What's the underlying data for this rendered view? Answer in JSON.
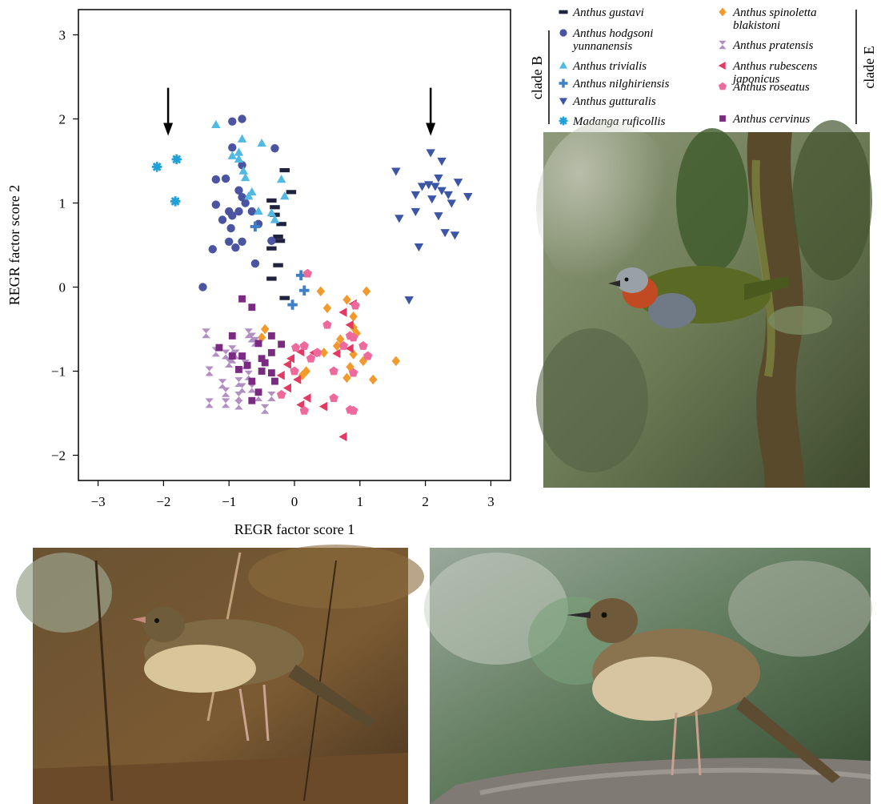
{
  "chart_data": {
    "type": "scatter",
    "xlabel": "REGR factor score 1",
    "ylabel": "REGR factor score 2",
    "xlim": [
      -3.3,
      3.3
    ],
    "ylim": [
      -2.3,
      3.3
    ],
    "xticks": [
      -3,
      -2,
      -1,
      0,
      1,
      2,
      3
    ],
    "yticks": [
      -2,
      -1,
      0,
      1,
      2,
      3
    ],
    "xtick_labels": [
      "−3",
      "−2",
      "−1",
      "0",
      "1",
      "2",
      "3"
    ],
    "ytick_labels": [
      "−2",
      "−1",
      "0",
      "1",
      "2",
      "3"
    ],
    "grid": false,
    "annotations": [
      {
        "type": "arrow-down",
        "x": -1.93,
        "y_top": 2.37,
        "y_bottom": 1.8
      },
      {
        "type": "arrow-down",
        "x": 2.08,
        "y_top": 2.37,
        "y_bottom": 1.8
      }
    ],
    "series": [
      {
        "name": "Anthus gustavi",
        "marker": "dash",
        "color": "#1f2340",
        "points": [
          [
            -0.15,
            1.39
          ],
          [
            -0.05,
            1.13
          ],
          [
            -0.35,
            1.03
          ],
          [
            -0.2,
            0.75
          ],
          [
            -0.25,
            0.6
          ],
          [
            -0.3,
            0.86
          ],
          [
            -0.35,
            0.46
          ],
          [
            -0.22,
            0.55
          ],
          [
            -0.25,
            0.26
          ],
          [
            -0.35,
            0.1
          ],
          [
            -0.15,
            -0.13
          ],
          [
            -0.3,
            0.95
          ]
        ]
      },
      {
        "name": "Anthus hodgsoni yunnanensis",
        "marker": "circle",
        "color": "#4b54a0",
        "points": [
          [
            -0.8,
            2.0
          ],
          [
            -0.95,
            1.97
          ],
          [
            -0.3,
            1.65
          ],
          [
            -0.95,
            1.66
          ],
          [
            -0.8,
            1.45
          ],
          [
            -1.05,
            1.29
          ],
          [
            -0.85,
            1.15
          ],
          [
            -0.8,
            1.07
          ],
          [
            -1.2,
            0.98
          ],
          [
            -1.0,
            0.9
          ],
          [
            -0.95,
            0.85
          ],
          [
            -0.85,
            0.9
          ],
          [
            -1.1,
            0.8
          ],
          [
            -0.97,
            0.7
          ],
          [
            -1.0,
            0.54
          ],
          [
            -0.8,
            0.54
          ],
          [
            -0.9,
            0.47
          ],
          [
            -0.6,
            0.28
          ],
          [
            -1.25,
            0.45
          ],
          [
            -1.4,
            0.0
          ],
          [
            -0.75,
            1.0
          ],
          [
            -0.35,
            0.55
          ],
          [
            -1.2,
            1.28
          ],
          [
            -0.65,
            0.9
          ],
          [
            -0.55,
            0.75
          ]
        ]
      },
      {
        "name": "Anthus trivialis",
        "marker": "triangle-up",
        "color": "#52b9e3",
        "points": [
          [
            -1.2,
            1.93
          ],
          [
            -0.8,
            1.76
          ],
          [
            -0.5,
            1.71
          ],
          [
            -0.85,
            1.6
          ],
          [
            -0.95,
            1.56
          ],
          [
            -0.85,
            1.52
          ],
          [
            -0.78,
            1.38
          ],
          [
            -0.75,
            1.3
          ],
          [
            -0.65,
            1.13
          ],
          [
            -0.55,
            0.9
          ],
          [
            -0.35,
            0.88
          ],
          [
            -0.3,
            0.8
          ],
          [
            -0.15,
            1.08
          ],
          [
            -0.2,
            1.28
          ],
          [
            -0.7,
            1.08
          ]
        ]
      },
      {
        "name": "Anthus nilghiriensis",
        "marker": "plus",
        "color": "#3f7fc6",
        "points": [
          [
            -0.6,
            0.72
          ],
          [
            0.1,
            0.14
          ],
          [
            0.15,
            -0.04
          ],
          [
            -0.03,
            -0.21
          ]
        ]
      },
      {
        "name": "Anthus gutturalis",
        "marker": "triangle-down",
        "color": "#3d55a6",
        "points": [
          [
            2.08,
            1.6
          ],
          [
            2.25,
            1.5
          ],
          [
            1.55,
            1.38
          ],
          [
            2.2,
            1.3
          ],
          [
            2.5,
            1.25
          ],
          [
            2.05,
            1.22
          ],
          [
            2.15,
            1.2
          ],
          [
            1.95,
            1.2
          ],
          [
            2.25,
            1.15
          ],
          [
            1.85,
            1.1
          ],
          [
            2.35,
            1.1
          ],
          [
            2.65,
            1.08
          ],
          [
            2.1,
            1.05
          ],
          [
            2.4,
            1.0
          ],
          [
            1.85,
            0.9
          ],
          [
            1.6,
            0.82
          ],
          [
            2.2,
            0.85
          ],
          [
            2.3,
            0.65
          ],
          [
            2.45,
            0.62
          ],
          [
            1.9,
            0.48
          ],
          [
            1.75,
            -0.15
          ]
        ]
      },
      {
        "name": "Madanga ruficollis",
        "marker": "asterisk",
        "color": "#1fa0d8",
        "points": [
          [
            -2.1,
            1.43
          ],
          [
            -1.8,
            1.52
          ],
          [
            -1.82,
            1.02
          ]
        ]
      },
      {
        "name": "Anthus spinoletta blakistoni",
        "marker": "diamond",
        "color": "#f39a2c",
        "points": [
          [
            0.4,
            -0.05
          ],
          [
            0.5,
            -0.25
          ],
          [
            0.8,
            -0.15
          ],
          [
            0.9,
            -0.35
          ],
          [
            1.1,
            -0.05
          ],
          [
            0.7,
            -0.62
          ],
          [
            0.95,
            -0.55
          ],
          [
            0.65,
            -0.7
          ],
          [
            0.45,
            -0.78
          ],
          [
            0.9,
            -0.8
          ],
          [
            1.05,
            -0.88
          ],
          [
            0.85,
            -0.95
          ],
          [
            1.55,
            -0.88
          ],
          [
            1.2,
            -1.1
          ],
          [
            0.12,
            -1.05
          ],
          [
            -0.45,
            -0.5
          ],
          [
            -0.5,
            -0.6
          ],
          [
            0.8,
            -1.08
          ],
          [
            0.9,
            -0.48
          ],
          [
            0.18,
            -1.0
          ]
        ]
      },
      {
        "name": "Anthus pratensis",
        "marker": "hourglass",
        "color": "#b28fc3",
        "points": [
          [
            -1.35,
            -0.55
          ],
          [
            -1.2,
            -0.77
          ],
          [
            -1.05,
            -0.8
          ],
          [
            -0.9,
            -0.8
          ],
          [
            -1.0,
            -0.9
          ],
          [
            -0.95,
            -0.85
          ],
          [
            -0.75,
            -0.92
          ],
          [
            -0.7,
            -0.55
          ],
          [
            -0.6,
            -0.65
          ],
          [
            -1.3,
            -1.0
          ],
          [
            -1.1,
            -1.15
          ],
          [
            -0.85,
            -1.13
          ],
          [
            -0.7,
            -1.05
          ],
          [
            -1.05,
            -1.25
          ],
          [
            -0.85,
            -1.3
          ],
          [
            -0.65,
            -1.2
          ],
          [
            -0.55,
            -1.3
          ],
          [
            -0.45,
            -1.45
          ],
          [
            -1.3,
            -1.38
          ],
          [
            -1.05,
            -1.38
          ],
          [
            -0.85,
            -1.4
          ],
          [
            -0.35,
            -1.3
          ],
          [
            -0.65,
            -0.6
          ],
          [
            -0.8,
            -1.2
          ],
          [
            -0.95,
            -0.75
          ]
        ]
      },
      {
        "name": "Anthus rubescens japonicus",
        "marker": "triangle-left",
        "color": "#e33a63",
        "points": [
          [
            0.9,
            -0.2
          ],
          [
            0.75,
            -0.3
          ],
          [
            0.85,
            -0.73
          ],
          [
            0.65,
            -0.79
          ],
          [
            0.1,
            -0.77
          ],
          [
            -0.05,
            -0.85
          ],
          [
            -0.1,
            -0.92
          ],
          [
            -0.2,
            -1.05
          ],
          [
            0.05,
            -1.1
          ],
          [
            -0.1,
            -1.2
          ],
          [
            0.2,
            -1.32
          ],
          [
            0.1,
            -1.4
          ],
          [
            0.45,
            -1.42
          ],
          [
            0.75,
            -1.78
          ],
          [
            0.85,
            -0.45
          ],
          [
            0.3,
            -0.78
          ]
        ]
      },
      {
        "name": "Anthus roseatus",
        "marker": "pentagon",
        "color": "#ef6a9c",
        "points": [
          [
            0.2,
            0.16
          ],
          [
            0.93,
            -0.22
          ],
          [
            0.5,
            -0.45
          ],
          [
            0.9,
            -0.6
          ],
          [
            1.05,
            -0.7
          ],
          [
            0.35,
            -0.78
          ],
          [
            0.15,
            -0.7
          ],
          [
            0.25,
            -0.85
          ],
          [
            0.85,
            -0.58
          ],
          [
            1.12,
            -0.82
          ],
          [
            0.9,
            -1.02
          ],
          [
            0.6,
            -1.0
          ],
          [
            0.0,
            -1.0
          ],
          [
            -0.2,
            -1.28
          ],
          [
            0.15,
            -1.47
          ],
          [
            0.6,
            -1.32
          ],
          [
            0.85,
            -1.46
          ],
          [
            0.9,
            -1.47
          ],
          [
            0.75,
            -0.7
          ],
          [
            0.02,
            -0.72
          ]
        ]
      },
      {
        "name": "Anthus cervinus",
        "marker": "square",
        "color": "#7b2a82",
        "points": [
          [
            -0.8,
            -0.14
          ],
          [
            -0.65,
            -0.24
          ],
          [
            -1.15,
            -0.72
          ],
          [
            -0.95,
            -0.58
          ],
          [
            -0.8,
            -0.82
          ],
          [
            -0.5,
            -0.85
          ],
          [
            -0.35,
            -0.78
          ],
          [
            -0.2,
            -0.68
          ],
          [
            -0.55,
            -0.67
          ],
          [
            -0.85,
            -0.98
          ],
          [
            -0.72,
            -0.93
          ],
          [
            -0.5,
            -1.0
          ],
          [
            -0.35,
            -1.02
          ],
          [
            -0.65,
            -1.12
          ],
          [
            -0.3,
            -1.12
          ],
          [
            -0.55,
            -1.25
          ],
          [
            -0.65,
            -1.35
          ],
          [
            -0.35,
            -0.58
          ],
          [
            -0.95,
            -0.82
          ],
          [
            -0.45,
            -0.9
          ]
        ]
      }
    ]
  },
  "legend": {
    "left": [
      {
        "label": "Anthus gustavi",
        "series": 0
      },
      {
        "label": "Anthus hodgsoni",
        "label2": "yunnanensis",
        "series": 1
      },
      {
        "label": "Anthus trivialis",
        "series": 2
      },
      {
        "label": "Anthus nilghiriensis",
        "series": 3
      },
      {
        "label": "Anthus gutturalis",
        "series": 4
      },
      {
        "label": "Madanga ruficollis",
        "series": 5
      }
    ],
    "right": [
      {
        "label": "Anthus spinoletta",
        "label2": "blakistoni",
        "series": 6
      },
      {
        "label": "Anthus pratensis",
        "series": 7
      },
      {
        "label": "Anthus rubescens",
        "label2": "japonicus",
        "series": 8
      },
      {
        "label": "Anthus roseatus",
        "series": 9
      },
      {
        "label": "Anthus cervinus",
        "series": 10
      }
    ],
    "clade_b_label": "clade B",
    "clade_e_label": "clade E"
  },
  "photos": [
    {
      "subject": "bird-on-mossy-trunk",
      "palette": [
        "#6c7a55",
        "#8f9a7a",
        "#3f4a2e"
      ]
    },
    {
      "subject": "streaked-pipit-on-ground",
      "palette": [
        "#7a5a32",
        "#5a3f22",
        "#9b7a4b"
      ]
    },
    {
      "subject": "streaked-pipit-on-rock",
      "palette": [
        "#6e8a6a",
        "#3f5a3c",
        "#9aa99a"
      ]
    }
  ]
}
